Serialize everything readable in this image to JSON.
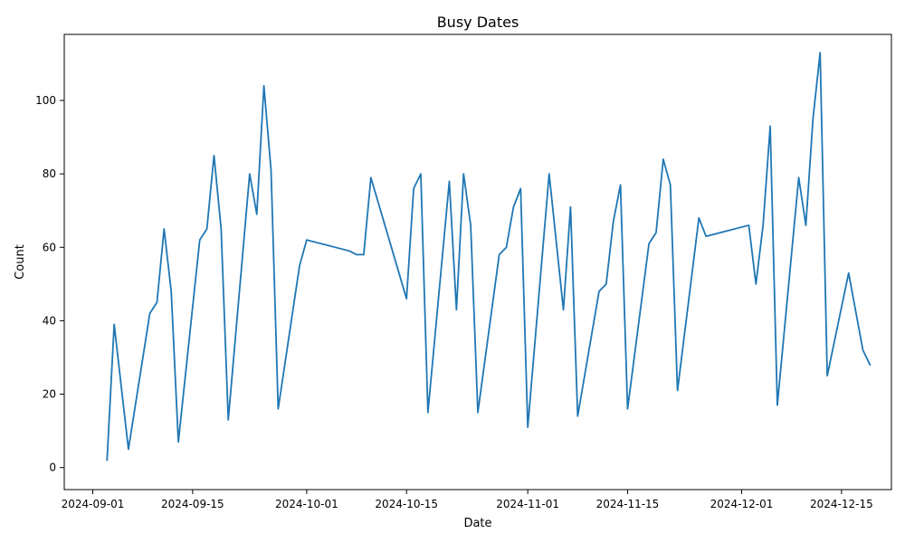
{
  "chart_data": {
    "type": "line",
    "title": "Busy Dates",
    "xlabel": "Date",
    "ylabel": "Count",
    "xlim": [
      "2024-08-28",
      "2024-12-22"
    ],
    "ylim": [
      -6,
      118
    ],
    "grid": false,
    "legend": "none",
    "color": "#1f77b4",
    "x_ticks": [
      "2024-09-01",
      "2024-09-15",
      "2024-10-01",
      "2024-10-15",
      "2024-11-01",
      "2024-11-15",
      "2024-12-01",
      "2024-12-15"
    ],
    "y_ticks": [
      0,
      20,
      40,
      60,
      80,
      100
    ],
    "series": [
      {
        "points": [
          [
            "2024-09-03",
            2
          ],
          [
            "2024-09-04",
            39
          ],
          [
            "2024-09-06",
            5
          ],
          [
            "2024-09-09",
            42
          ],
          [
            "2024-09-10",
            45
          ],
          [
            "2024-09-11",
            65
          ],
          [
            "2024-09-12",
            48
          ],
          [
            "2024-09-13",
            7
          ],
          [
            "2024-09-16",
            62
          ],
          [
            "2024-09-17",
            65
          ],
          [
            "2024-09-18",
            85
          ],
          [
            "2024-09-19",
            65
          ],
          [
            "2024-09-20",
            13
          ],
          [
            "2024-09-23",
            80
          ],
          [
            "2024-09-24",
            69
          ],
          [
            "2024-09-25",
            104
          ],
          [
            "2024-09-26",
            81
          ],
          [
            "2024-09-27",
            16
          ],
          [
            "2024-09-30",
            55
          ],
          [
            "2024-10-01",
            62
          ],
          [
            "2024-10-07",
            59
          ],
          [
            "2024-10-08",
            58
          ],
          [
            "2024-10-09",
            58
          ],
          [
            "2024-10-10",
            79
          ],
          [
            "2024-10-15",
            46
          ],
          [
            "2024-10-16",
            76
          ],
          [
            "2024-10-17",
            80
          ],
          [
            "2024-10-18",
            15
          ],
          [
            "2024-10-21",
            78
          ],
          [
            "2024-10-22",
            43
          ],
          [
            "2024-10-23",
            80
          ],
          [
            "2024-10-24",
            66
          ],
          [
            "2024-10-25",
            15
          ],
          [
            "2024-10-28",
            58
          ],
          [
            "2024-10-29",
            60
          ],
          [
            "2024-10-30",
            71
          ],
          [
            "2024-10-31",
            76
          ],
          [
            "2024-11-01",
            11
          ],
          [
            "2024-11-04",
            80
          ],
          [
            "2024-11-06",
            43
          ],
          [
            "2024-11-07",
            71
          ],
          [
            "2024-11-08",
            14
          ],
          [
            "2024-11-11",
            48
          ],
          [
            "2024-11-12",
            50
          ],
          [
            "2024-11-13",
            67
          ],
          [
            "2024-11-14",
            77
          ],
          [
            "2024-11-15",
            16
          ],
          [
            "2024-11-18",
            61
          ],
          [
            "2024-11-19",
            64
          ],
          [
            "2024-11-20",
            84
          ],
          [
            "2024-11-21",
            77
          ],
          [
            "2024-11-22",
            21
          ],
          [
            "2024-11-25",
            68
          ],
          [
            "2024-11-26",
            63
          ],
          [
            "2024-12-02",
            66
          ],
          [
            "2024-12-03",
            50
          ],
          [
            "2024-12-04",
            66
          ],
          [
            "2024-12-05",
            93
          ],
          [
            "2024-12-06",
            17
          ],
          [
            "2024-12-09",
            79
          ],
          [
            "2024-12-10",
            66
          ],
          [
            "2024-12-11",
            95
          ],
          [
            "2024-12-12",
            113
          ],
          [
            "2024-12-13",
            25
          ],
          [
            "2024-12-16",
            53
          ],
          [
            "2024-12-18",
            32
          ],
          [
            "2024-12-19",
            28
          ]
        ]
      }
    ]
  }
}
